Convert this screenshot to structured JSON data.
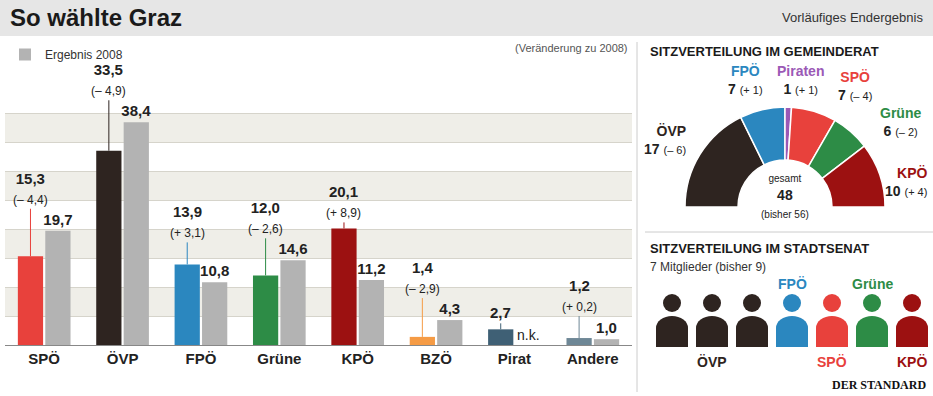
{
  "header": {
    "title": "So wählte Graz",
    "note": "Vorläufiges Endergebnis",
    "source": "DER STANDARD"
  },
  "chart_data": [
    {
      "type": "bar",
      "subtitle": "(Veränderung zu 2008)",
      "categories": [
        "SPÖ",
        "ÖVP",
        "FPÖ",
        "Grüne",
        "KPÖ",
        "BZÖ",
        "Pirat",
        "Andere"
      ],
      "series": [
        {
          "colors": [
            "#e8413c",
            "#2e2420",
            "#2b87bf",
            "#2d8c46",
            "#9c1111",
            "#f59b45",
            "#3f6075",
            "#6e8796"
          ],
          "values": [
            15.3,
            33.5,
            13.9,
            12.0,
            20.1,
            1.4,
            2.7,
            1.2
          ],
          "value_labels": [
            "15,3",
            "33,5",
            "13,9",
            "12,0",
            "20,1",
            "1,4",
            "2,7",
            "1,2"
          ],
          "change_labels": [
            "(– 4,4)",
            "(– 4,9)",
            "(+ 3,1)",
            "(– 2,6)",
            "(+ 8,9)",
            "(– 2,9)",
            null,
            "(+ 0,2)"
          ]
        },
        {
          "name": "Ergebnis 2008",
          "color": "#b3b3b3",
          "values": [
            19.7,
            38.4,
            10.8,
            14.6,
            11.2,
            4.3,
            null,
            1.0
          ],
          "value_labels": [
            "19,7",
            "38,4",
            "10,8",
            "14,6",
            "11,2",
            "4,3",
            "n.k.",
            "1,0"
          ]
        }
      ],
      "ylim": [
        0,
        45
      ],
      "yticks": [
        0,
        5,
        10,
        15,
        20,
        25,
        30,
        35,
        40,
        45
      ],
      "grid": true,
      "tick_labels": "x",
      "data_labels": true,
      "legend": "top left"
    },
    {
      "type": "pie",
      "title": "SITZVERTEILUNG IM GEMEINDERAT",
      "categories": [
        "ÖVP",
        "FPÖ",
        "Piraten",
        "SPÖ",
        "Grüne",
        "KPÖ"
      ],
      "values": [
        17,
        7,
        1,
        7,
        6,
        10
      ],
      "colors": [
        "#2e2420",
        "#2b87bf",
        "#9b59b6",
        "#e8413c",
        "#2d8c46",
        "#9c1111"
      ],
      "change_labels": [
        "(– 6)",
        "(+ 1)",
        "(+ 1)",
        "(– 4)",
        "(– 2)",
        "(+ 4)"
      ],
      "center_labels": [
        "gesamt",
        "48",
        "(bisher 56)"
      ],
      "data_labels": true
    },
    {
      "type": "icons",
      "title": "SITZVERTEILUNG IM STADTSENAT",
      "subtitle": "7 Mitglieder (bisher 9)",
      "categories": [
        "ÖVP",
        "FPÖ",
        "SPÖ",
        "Grüne",
        "KPÖ"
      ],
      "values": [
        3,
        1,
        1,
        1,
        1
      ],
      "colors": [
        "#2e2420",
        "#2b87bf",
        "#e8413c",
        "#2d8c46",
        "#9c1111"
      ]
    }
  ]
}
